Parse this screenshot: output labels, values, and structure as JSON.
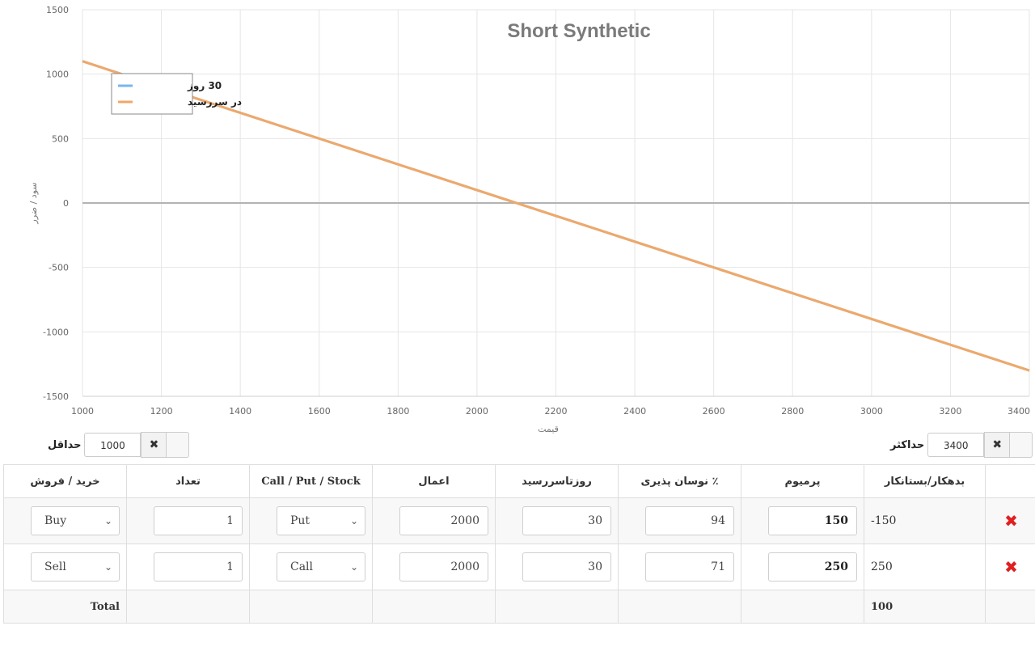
{
  "chart_data": {
    "type": "line",
    "title": "Short Synthetic",
    "xlabel": "قیمت",
    "ylabel": "سود / ضرر",
    "xlim": [
      1000,
      3400
    ],
    "ylim": [
      -1500,
      1500
    ],
    "x_ticks": [
      1000,
      1200,
      1400,
      1600,
      1800,
      2000,
      2200,
      2400,
      2600,
      2800,
      3000,
      3200,
      3400
    ],
    "y_ticks": [
      1500,
      1000,
      500,
      0,
      -500,
      -1000,
      -1500
    ],
    "grid": true,
    "legend_position": "top-left",
    "series": [
      {
        "name": "30 روز",
        "color": "#7cb5ec",
        "x": [
          1000,
          3400
        ],
        "y": [
          1100,
          -1300
        ]
      },
      {
        "name": "در سررسید",
        "color": "#f0a868",
        "x": [
          1000,
          3400
        ],
        "y": [
          1100,
          -1300
        ]
      }
    ]
  },
  "range_controls": {
    "min_label": "حداقل",
    "min_value": "1000",
    "max_label": "حداکثر",
    "max_value": "3400",
    "clear_icon": "✖"
  },
  "table": {
    "headers": {
      "net": "بدهکار/بستانکار",
      "premium": "پرمیوم",
      "volatility": "٪ نوسان پذیری",
      "days": "روزتاسررسید",
      "strike": "اعمال",
      "type": "Call / Put / Stock",
      "quantity": "تعداد",
      "side": "خرید / فروش"
    },
    "rows": [
      {
        "net": "-150",
        "premium": "150",
        "volatility": "94",
        "days": "30",
        "strike": "2000",
        "type": "Put",
        "quantity": "1",
        "side": "Buy"
      },
      {
        "net": "250",
        "premium": "250",
        "volatility": "71",
        "days": "30",
        "strike": "2000",
        "type": "Call",
        "quantity": "1",
        "side": "Sell"
      }
    ],
    "total_label": "Total",
    "total_value": "100",
    "delete_icon": "✖"
  },
  "colors": {
    "accent_line": "#f0a868",
    "secondary_line": "#7cb5ec",
    "delete": "#e02020"
  }
}
